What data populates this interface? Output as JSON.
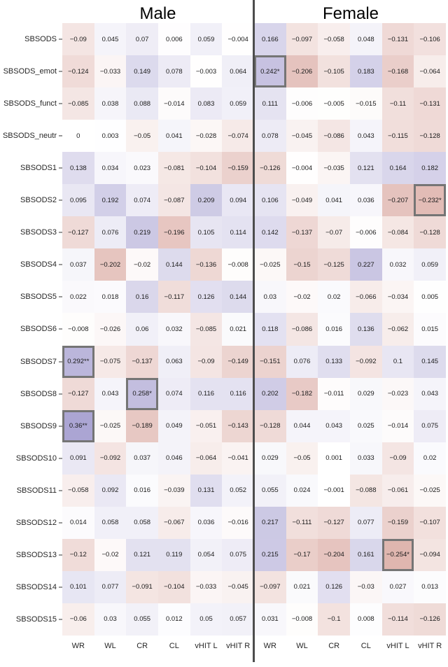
{
  "titles": {
    "male": "Male",
    "female": "Female"
  },
  "colors": {
    "positive_end": "#968ec8",
    "negative_end": "#c77d71",
    "neutral": "#ffffff",
    "box_border": "#757575",
    "divider": "#4d4d4d",
    "scale_abs_max": 0.45
  },
  "chart_data": {
    "type": "heatmap",
    "title": "",
    "panels": [
      "Male",
      "Female"
    ],
    "legend_position": "none",
    "grid": "off",
    "rows": [
      "SBSODS",
      "SBSODS_emot",
      "SBSODS_funct",
      "SBSODS_neutr",
      "SBSODS1",
      "SBSODS2",
      "SBSODS3",
      "SBSODS4",
      "SBSODS5",
      "SBSODS6",
      "SBSODS7",
      "SBSODS8",
      "SBSODS9",
      "SBSODS10",
      "SBSODS11",
      "SBSODS12",
      "SBSODS13",
      "SBSODS14",
      "SBSODS15"
    ],
    "columns": [
      "WR",
      "WL",
      "CR",
      "CL",
      "vHIT L",
      "vHIT R"
    ],
    "male_values": [
      [
        "-0.09",
        "0.045",
        "0.07",
        "0.006",
        "0.059",
        "-0.004"
      ],
      [
        "-0.124",
        "-0.033",
        "0.149",
        "0.078",
        "-0.003",
        "0.064"
      ],
      [
        "-0.085",
        "0.038",
        "0.088",
        "-0.014",
        "0.083",
        "0.059"
      ],
      [
        "0",
        "0.003",
        "-0.05",
        "0.041",
        "-0.028",
        "-0.074"
      ],
      [
        "0.138",
        "0.034",
        "0.023",
        "-0.081",
        "-0.104",
        "-0.159"
      ],
      [
        "0.095",
        "0.192",
        "0.074",
        "-0.087",
        "0.209",
        "0.094"
      ],
      [
        "-0.127",
        "0.076",
        "0.219",
        "-0.196",
        "0.105",
        "0.114"
      ],
      [
        "0.037",
        "-0.202",
        "-0.02",
        "0.144",
        "-0.136",
        "-0.008"
      ],
      [
        "0.022",
        "0.018",
        "0.16",
        "-0.117",
        "0.126",
        "0.144"
      ],
      [
        "-0.008",
        "-0.026",
        "0.06",
        "0.032",
        "-0.085",
        "0.021"
      ],
      [
        "0.292**",
        "-0.075",
        "-0.137",
        "0.063",
        "-0.09",
        "-0.149"
      ],
      [
        "-0.127",
        "0.043",
        "0.258*",
        "0.074",
        "0.116",
        "0.116"
      ],
      [
        "0.36**",
        "-0.025",
        "-0.189",
        "0.049",
        "-0.051",
        "-0.143"
      ],
      [
        "0.091",
        "-0.092",
        "0.037",
        "0.046",
        "-0.064",
        "-0.041"
      ],
      [
        "-0.058",
        "0.092",
        "0.016",
        "-0.039",
        "0.131",
        "0.052"
      ],
      [
        "0.014",
        "0.058",
        "0.058",
        "-0.067",
        "0.036",
        "-0.016"
      ],
      [
        "-0.12",
        "-0.02",
        "0.121",
        "0.119",
        "0.054",
        "0.075"
      ],
      [
        "0.101",
        "0.077",
        "-0.091",
        "-0.104",
        "-0.033",
        "-0.045"
      ],
      [
        "-0.06",
        "0.03",
        "0.055",
        "0.012",
        "0.05",
        "0.057"
      ]
    ],
    "female_values": [
      [
        "0.166",
        "-0.097",
        "-0.058",
        "0.048",
        "-0.131",
        "-0.106"
      ],
      [
        "0.242*",
        "-0.206",
        "-0.105",
        "0.183",
        "-0.168",
        "-0.064"
      ],
      [
        "0.111",
        "-0.006",
        "-0.005",
        "-0.015",
        "-0.11",
        "-0.131"
      ],
      [
        "0.078",
        "-0.045",
        "-0.086",
        "0.043",
        "-0.115",
        "-0.128"
      ],
      [
        "-0.126",
        "-0.004",
        "-0.035",
        "0.121",
        "0.164",
        "0.182"
      ],
      [
        "0.106",
        "-0.049",
        "0.041",
        "0.036",
        "-0.207",
        "-0.232*"
      ],
      [
        "0.142",
        "-0.137",
        "-0.07",
        "-0.006",
        "-0.084",
        "-0.128"
      ],
      [
        "-0.025",
        "-0.15",
        "-0.125",
        "0.227",
        "0.032",
        "0.059"
      ],
      [
        "0.03",
        "-0.02",
        "0.02",
        "-0.066",
        "-0.034",
        "0.005"
      ],
      [
        "0.118",
        "-0.086",
        "0.016",
        "0.136",
        "-0.062",
        "0.015"
      ],
      [
        "-0.151",
        "0.076",
        "0.133",
        "-0.092",
        "0.1",
        "0.145"
      ],
      [
        "0.202",
        "-0.182",
        "-0.011",
        "0.029",
        "-0.023",
        "0.043"
      ],
      [
        "-0.128",
        "0.044",
        "0.043",
        "0.025",
        "-0.014",
        "0.075"
      ],
      [
        "0.029",
        "-0.05",
        "0.001",
        "0.033",
        "-0.09",
        "0.02"
      ],
      [
        "0.055",
        "0.024",
        "-0.001",
        "-0.088",
        "-0.061",
        "-0.025"
      ],
      [
        "0.217",
        "-0.111",
        "-0.127",
        "0.077",
        "-0.159",
        "-0.107"
      ],
      [
        "0.215",
        "-0.17",
        "-0.204",
        "0.161",
        "-0.254*",
        "-0.094"
      ],
      [
        "-0.097",
        "0.021",
        "0.126",
        "-0.03",
        "0.027",
        "0.013"
      ],
      [
        "0.031",
        "-0.008",
        "-0.1",
        "0.008",
        "-0.114",
        "-0.126"
      ]
    ],
    "boxed_indices": [
      [
        1,
        6
      ],
      [
        5,
        11
      ],
      [
        10,
        0
      ],
      [
        11,
        2
      ],
      [
        12,
        0
      ],
      [
        16,
        10
      ]
    ],
    "significant_boxed_cells": [
      {
        "row": "SBSODS_emot",
        "panel": "Female",
        "column": "WR",
        "value": "0.242*"
      },
      {
        "row": "SBSODS2",
        "panel": "Female",
        "column": "vHIT R",
        "value": "-0.232*"
      },
      {
        "row": "SBSODS7",
        "panel": "Male",
        "column": "WR",
        "value": "0.292**"
      },
      {
        "row": "SBSODS8",
        "panel": "Male",
        "column": "CR",
        "value": "0.258*"
      },
      {
        "row": "SBSODS9",
        "panel": "Male",
        "column": "WR",
        "value": "0.36**"
      },
      {
        "row": "SBSODS13",
        "panel": "Female",
        "column": "vHIT L",
        "value": "-0.254*"
      }
    ],
    "value_range": [
      -0.45,
      0.45
    ]
  }
}
